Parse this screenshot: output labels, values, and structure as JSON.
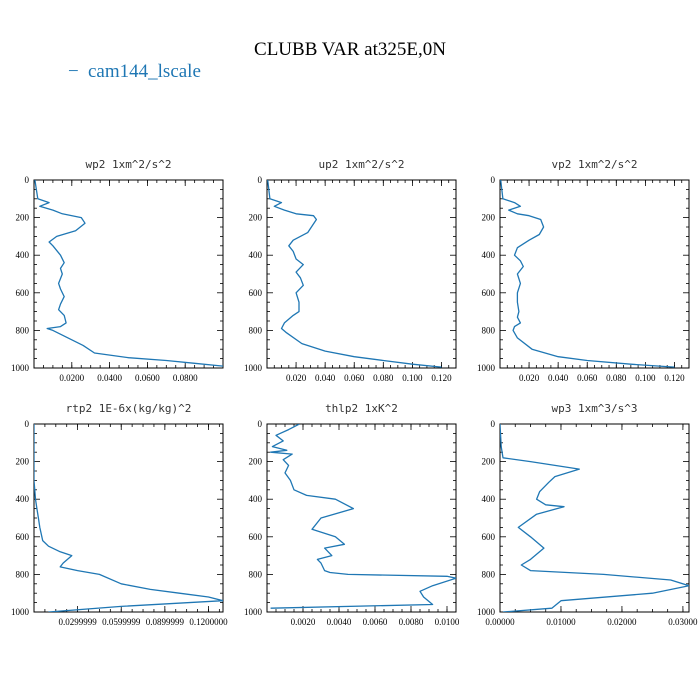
{
  "figure": {
    "title": "CLUBB VAR at325E,0N",
    "legend": {
      "label": "cam144_lscale",
      "marker": "−",
      "color": "#1f77b4"
    }
  },
  "chart_data": [
    {
      "type": "line",
      "title": "wp2  1xm^2/s^2",
      "series_name": "cam144_lscale",
      "xlim": [
        0,
        0.1
      ],
      "ylim": [
        1000,
        0
      ],
      "xticks": [
        0.02,
        0.04,
        0.06,
        0.08
      ],
      "xtick_labels": [
        "0.0200",
        "0.0400",
        "0.0600",
        "0.0800"
      ],
      "yticks": [
        0,
        200,
        400,
        600,
        800,
        1000
      ],
      "x": [
        0.0005,
        0.002,
        0.008,
        0.003,
        0.01,
        0.015,
        0.025,
        0.027,
        0.022,
        0.012,
        0.008,
        0.01,
        0.014,
        0.016,
        0.014,
        0.015,
        0.013,
        0.014,
        0.016,
        0.014,
        0.013,
        0.016,
        0.017,
        0.014,
        0.007,
        0.01,
        0.018,
        0.026,
        0.032,
        0.05,
        0.07,
        0.085,
        0.1
      ],
      "y": [
        0,
        100,
        120,
        140,
        160,
        180,
        200,
        230,
        270,
        300,
        330,
        350,
        400,
        440,
        470,
        500,
        550,
        580,
        620,
        660,
        690,
        720,
        760,
        780,
        790,
        800,
        840,
        880,
        920,
        945,
        960,
        975,
        990
      ]
    },
    {
      "type": "line",
      "title": "up2  1xm^2/s^2",
      "series_name": "cam144_lscale",
      "xlim": [
        0,
        0.13
      ],
      "ylim": [
        1000,
        0
      ],
      "xticks": [
        0.02,
        0.04,
        0.06,
        0.08,
        0.1,
        0.12
      ],
      "xtick_labels": [
        "0.020",
        "0.040",
        "0.060",
        "0.080",
        "0.100",
        "0.120"
      ],
      "yticks": [
        0,
        200,
        400,
        600,
        800,
        1000
      ],
      "x": [
        0.0005,
        0.002,
        0.01,
        0.005,
        0.012,
        0.02,
        0.032,
        0.034,
        0.028,
        0.018,
        0.015,
        0.018,
        0.02,
        0.025,
        0.02,
        0.023,
        0.025,
        0.02,
        0.022,
        0.022,
        0.018,
        0.012,
        0.01,
        0.013,
        0.024,
        0.04,
        0.06,
        0.08,
        0.1,
        0.12
      ],
      "y": [
        0,
        100,
        120,
        140,
        160,
        180,
        190,
        210,
        280,
        320,
        350,
        380,
        420,
        450,
        490,
        520,
        560,
        600,
        650,
        700,
        720,
        760,
        790,
        810,
        870,
        910,
        940,
        960,
        980,
        995
      ]
    },
    {
      "type": "line",
      "title": "vp2  1xm^2/s^2",
      "series_name": "cam144_lscale",
      "xlim": [
        0,
        0.13
      ],
      "ylim": [
        1000,
        0
      ],
      "xticks": [
        0.02,
        0.04,
        0.06,
        0.08,
        0.1,
        0.12
      ],
      "xtick_labels": [
        "0.020",
        "0.040",
        "0.060",
        "0.080",
        "0.100",
        "0.120"
      ],
      "yticks": [
        0,
        200,
        400,
        600,
        800,
        1000
      ],
      "x": [
        0.0005,
        0.002,
        0.01,
        0.014,
        0.006,
        0.012,
        0.02,
        0.028,
        0.03,
        0.027,
        0.02,
        0.012,
        0.01,
        0.014,
        0.016,
        0.012,
        0.014,
        0.012,
        0.012,
        0.013,
        0.012,
        0.014,
        0.01,
        0.009,
        0.012,
        0.022,
        0.04,
        0.06,
        0.09,
        0.12
      ],
      "y": [
        0,
        100,
        120,
        140,
        160,
        180,
        190,
        210,
        250,
        290,
        320,
        360,
        400,
        430,
        460,
        500,
        550,
        600,
        650,
        700,
        730,
        760,
        780,
        800,
        840,
        900,
        940,
        960,
        980,
        995
      ]
    },
    {
      "type": "line",
      "title": "rtp2  1E-6x(kg/kg)^2",
      "series_name": "cam144_lscale",
      "xlim": [
        0,
        0.13
      ],
      "ylim": [
        1000,
        0
      ],
      "xticks": [
        0.03,
        0.06,
        0.09,
        0.12
      ],
      "xtick_labels": [
        "0.0299999",
        "0.0599999",
        "0.0899999",
        "0.1200000"
      ],
      "yticks": [
        0,
        200,
        400,
        600,
        800,
        1000
      ],
      "x": [
        0.0,
        0.0,
        0.001,
        0.002,
        0.003,
        0.004,
        0.006,
        0.01,
        0.018,
        0.026,
        0.02,
        0.018,
        0.03,
        0.045,
        0.06,
        0.08,
        0.1,
        0.12,
        0.13,
        0.06,
        0.01
      ],
      "y": [
        0,
        300,
        400,
        450,
        500,
        550,
        620,
        650,
        680,
        700,
        740,
        760,
        780,
        800,
        850,
        880,
        900,
        920,
        940,
        970,
        1000
      ]
    },
    {
      "type": "line",
      "title": "thlp2  1xK^2",
      "series_name": "cam144_lscale",
      "xlim": [
        0,
        0.0105
      ],
      "ylim": [
        1000,
        0
      ],
      "xticks": [
        0.002,
        0.004,
        0.006,
        0.008,
        0.01
      ],
      "xtick_labels": [
        "0.0020",
        "0.0040",
        "0.0060",
        "0.0080",
        "0.0100"
      ],
      "yticks": [
        0,
        200,
        400,
        600,
        800,
        1000
      ],
      "x": [
        0.0018,
        0.0012,
        0.0005,
        0.0009,
        0.0003,
        0.0011,
        0.0002,
        0.0014,
        0.0009,
        0.0012,
        0.001,
        0.0013,
        0.0015,
        0.0022,
        0.0038,
        0.0048,
        0.003,
        0.0025,
        0.0038,
        0.0043,
        0.0032,
        0.0036,
        0.0028,
        0.003,
        0.0032,
        0.0035,
        0.0045,
        0.01,
        0.0105,
        0.0092,
        0.0085,
        0.0087,
        0.0092,
        0.0002
      ],
      "y": [
        0,
        30,
        60,
        90,
        120,
        140,
        150,
        160,
        190,
        220,
        260,
        300,
        350,
        380,
        400,
        450,
        500,
        560,
        600,
        640,
        660,
        700,
        720,
        740,
        780,
        790,
        800,
        810,
        820,
        860,
        890,
        920,
        960,
        980
      ]
    },
    {
      "type": "line",
      "title": "wp3  1xm^3/s^3",
      "series_name": "cam144_lscale",
      "xlim": [
        0,
        0.031
      ],
      "ylim": [
        1000,
        0
      ],
      "xticks": [
        0,
        0.01,
        0.02,
        0.03
      ],
      "xtick_labels": [
        "0.00000",
        "0.01000",
        "0.02000",
        "0.03000"
      ],
      "yticks": [
        0,
        200,
        400,
        600,
        800,
        1000
      ],
      "x": [
        0.0,
        0.0002,
        0.0005,
        0.005,
        0.013,
        0.009,
        0.008,
        0.0065,
        0.006,
        0.0075,
        0.0105,
        0.006,
        0.003,
        0.005,
        0.0072,
        0.005,
        0.0035,
        0.005,
        0.017,
        0.028,
        0.031,
        0.025,
        0.01,
        0.0085,
        0.0005
      ],
      "y": [
        0,
        120,
        180,
        200,
        240,
        280,
        310,
        360,
        400,
        430,
        440,
        480,
        550,
        600,
        660,
        720,
        750,
        780,
        800,
        830,
        860,
        900,
        940,
        980,
        1000
      ]
    }
  ]
}
